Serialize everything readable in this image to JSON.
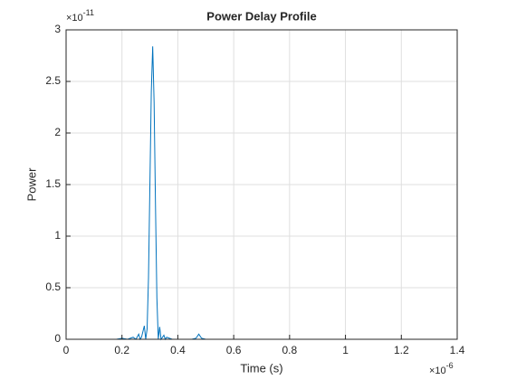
{
  "chart_data": {
    "type": "line",
    "title": "Power Delay Profile",
    "x_label": "Time (s)",
    "y_label": "Power",
    "x_exponent_base": "×10",
    "x_exponent": "-6",
    "y_exponent_base": "×10",
    "y_exponent": "-11",
    "x": [
      0,
      0.1,
      0.18,
      0.2,
      0.22,
      0.24,
      0.25,
      0.26,
      0.265,
      0.27,
      0.28,
      0.285,
      0.29,
      0.295,
      0.3,
      0.305,
      0.31,
      0.315,
      0.32,
      0.325,
      0.33,
      0.335,
      0.34,
      0.345,
      0.35,
      0.355,
      0.36,
      0.37,
      0.38,
      0.4,
      0.45,
      0.465,
      0.475,
      0.485,
      0.5,
      0.6,
      0.8,
      1.0,
      1.3
    ],
    "series": [
      {
        "color": "#0072bd",
        "values": [
          0,
          0,
          0,
          0.01,
          0,
          0.02,
          0,
          0.05,
          0,
          0.02,
          0.13,
          0,
          0.1,
          0.6,
          1.5,
          2.4,
          2.84,
          2.3,
          1.3,
          0.4,
          0,
          0.12,
          0,
          0.02,
          0.04,
          0,
          0.02,
          0.01,
          0,
          0,
          0,
          0.01,
          0.05,
          0.01,
          0,
          0,
          0,
          0,
          0
        ]
      }
    ],
    "xlim": [
      0,
      1.4
    ],
    "xticks": [
      0,
      0.2,
      0.4,
      0.6,
      0.8,
      1,
      1.2,
      1.4
    ],
    "ylim": [
      0,
      3
    ],
    "yticks": [
      0,
      0.5,
      1,
      1.5,
      2,
      2.5,
      3
    ],
    "grid": true
  }
}
